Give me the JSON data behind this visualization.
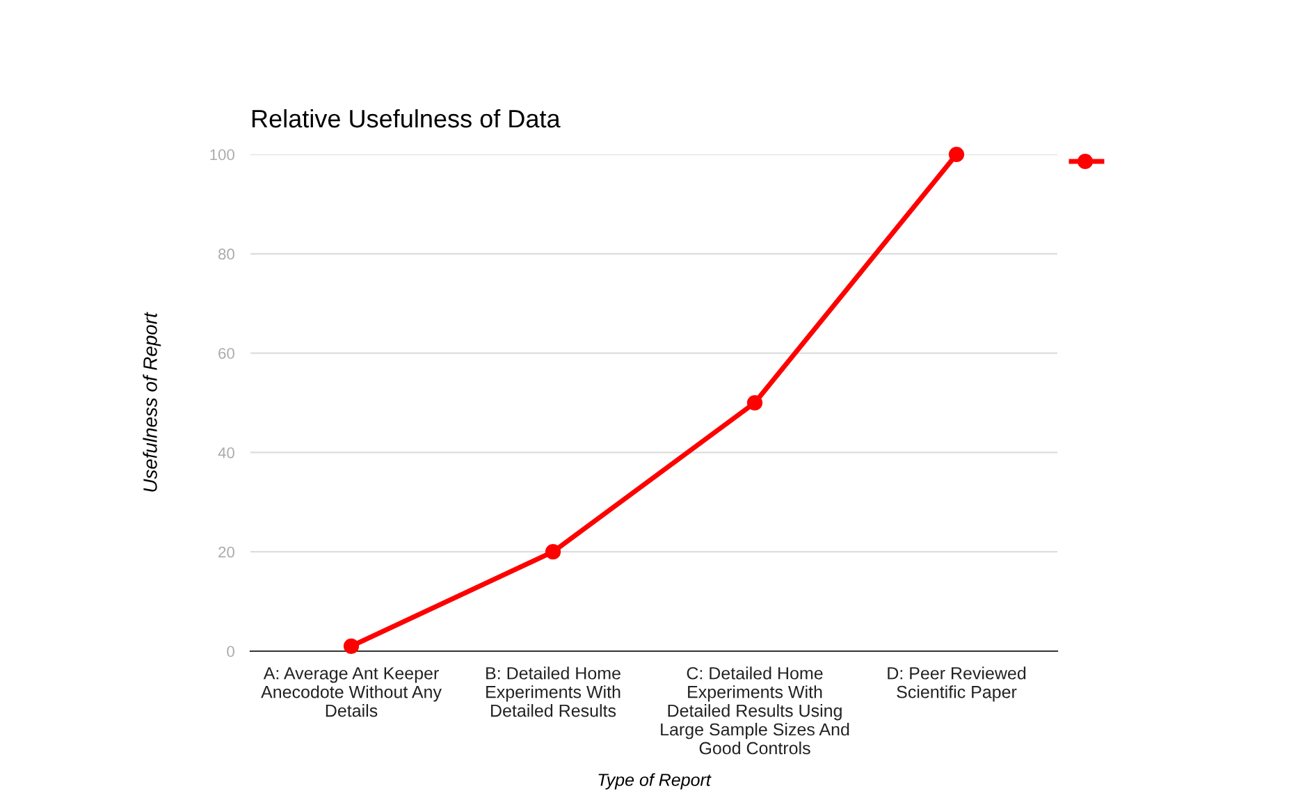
{
  "chart_data": {
    "type": "line",
    "title": "Relative Usefulness of Data",
    "xlabel": "Type of Report",
    "ylabel": "Usefulness of Report",
    "categories": [
      "A: Average Ant Keeper Anecodote Without Any Details",
      "B: Detailed Home Experiments With Detailed Results",
      "C: Detailed Home Experiments With Detailed Results Using Large Sample Sizes And Good Controls",
      "D: Peer Reviewed Scientific Paper"
    ],
    "series": [
      {
        "color": "#ff0000",
        "values": [
          1,
          20,
          50,
          100
        ]
      }
    ],
    "ylim": [
      0,
      100
    ],
    "yticks": [
      0,
      20,
      40,
      60,
      80,
      100
    ],
    "grid": "y",
    "marker": "circle",
    "line_style": "solid"
  }
}
